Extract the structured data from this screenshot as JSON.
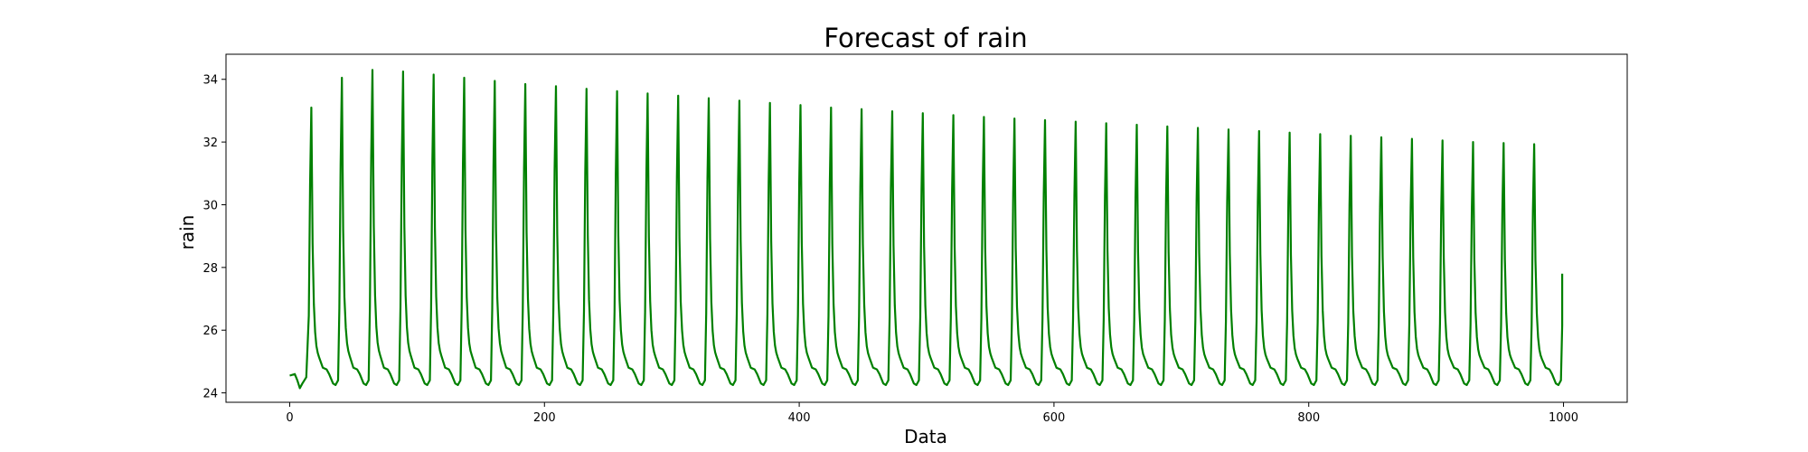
{
  "chart_data": {
    "type": "line",
    "title": "Forecast of rain",
    "xlabel": "Data",
    "ylabel": "rain",
    "xlim": [
      -50,
      1050
    ],
    "ylim": [
      23.7,
      34.8
    ],
    "xticks": [
      0,
      200,
      400,
      600,
      800,
      1000
    ],
    "yticks": [
      24,
      26,
      28,
      30,
      32,
      34
    ],
    "grid": false,
    "legend": "none",
    "color": "#008000",
    "series": [
      {
        "cycle_period": 24,
        "first_peak_x": 17,
        "baseline": 24.25,
        "start_value": 24.55,
        "end": {
          "x": 999,
          "y": 27.8
        },
        "peak_values": [
          33.1,
          34.05,
          34.3,
          34.25,
          34.15,
          34.05,
          33.95,
          33.85,
          33.78,
          33.7,
          33.62,
          33.55,
          33.48,
          33.4,
          33.32,
          33.25,
          33.18,
          33.1,
          33.05,
          32.98,
          32.92,
          32.86,
          32.8,
          32.75,
          32.7,
          32.65,
          32.6,
          32.55,
          32.5,
          32.45,
          32.4,
          32.35,
          32.3,
          32.25,
          32.2,
          32.15,
          32.1,
          32.05,
          32.0,
          31.97,
          31.93,
          31.88
        ]
      }
    ]
  }
}
